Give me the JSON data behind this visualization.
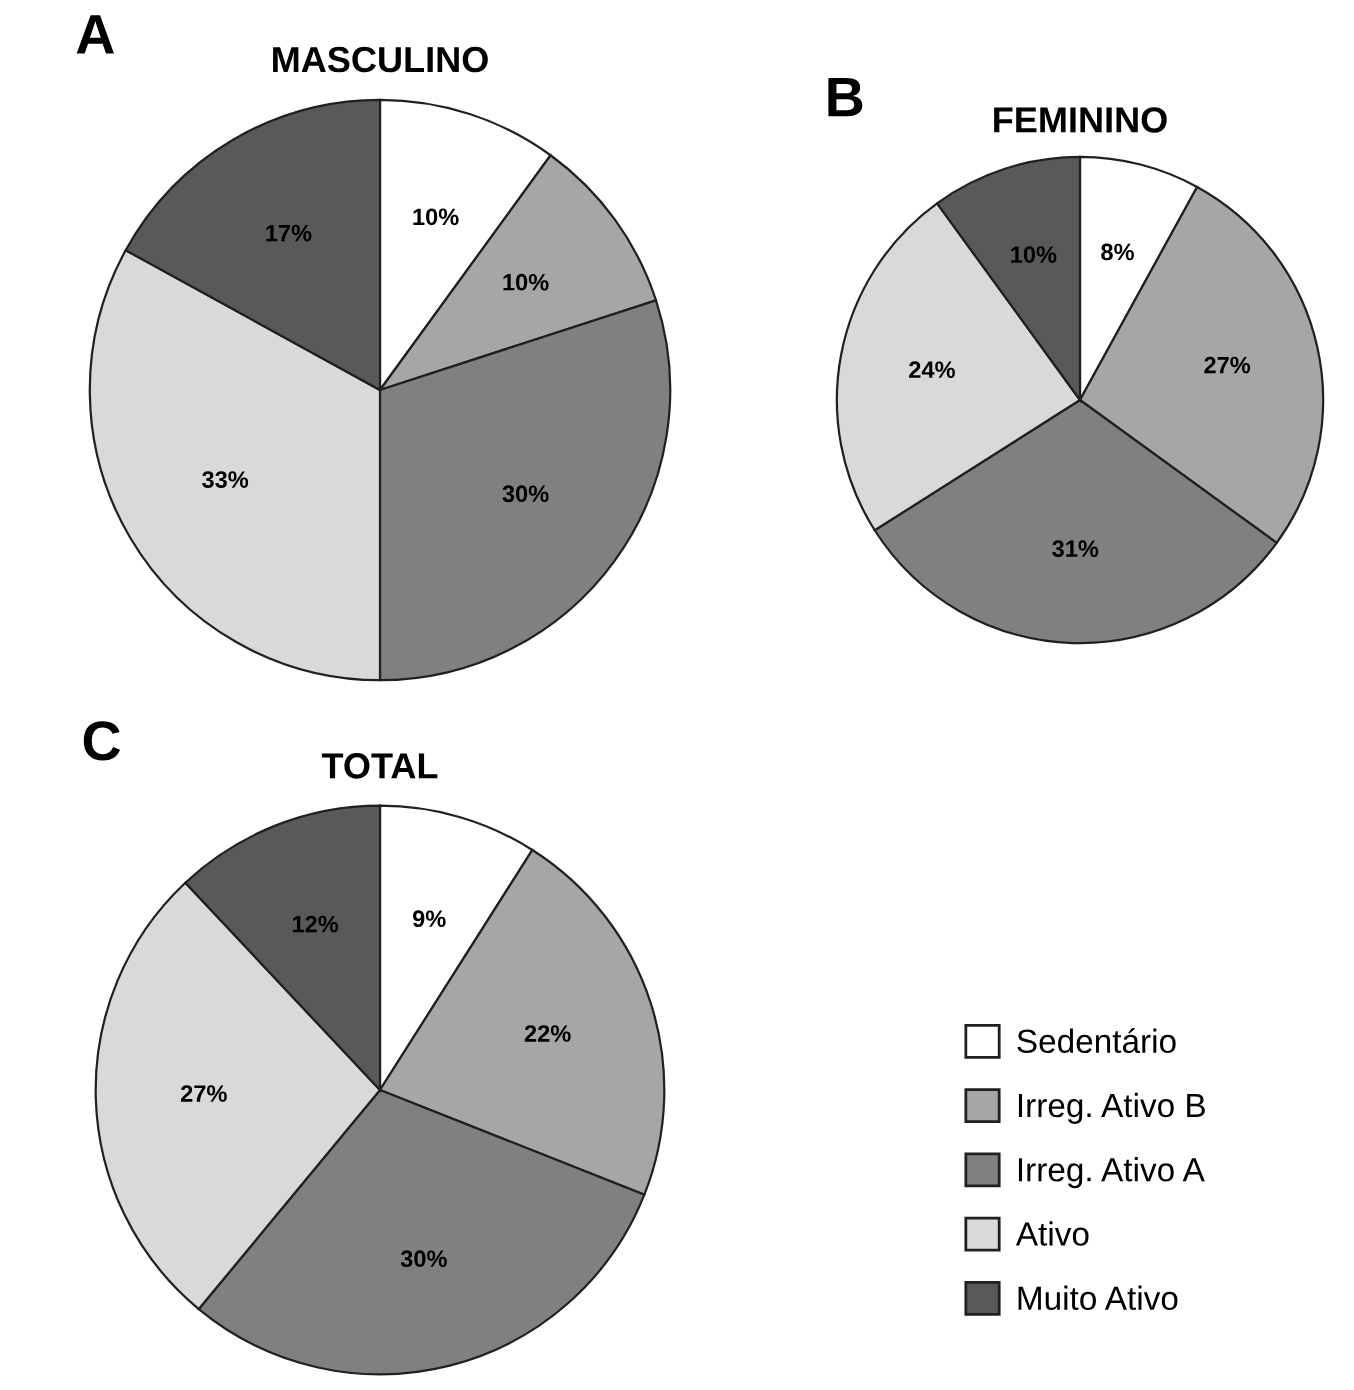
{
  "chart_data": [
    {
      "type": "pie",
      "title": "MASCULINO",
      "annotations": [
        "A"
      ],
      "values": [
        10,
        10,
        30,
        33,
        17
      ],
      "value_labels": [
        "10%",
        "10%",
        "30%",
        "33%",
        "17%"
      ],
      "colors": [
        "#ffffff",
        "#a6a6a6",
        "#808080",
        "#d9d9d9",
        "#595959"
      ]
    },
    {
      "type": "pie",
      "title": "FEMININO",
      "annotations": [
        "B"
      ],
      "values": [
        8,
        27,
        31,
        24,
        10
      ],
      "value_labels": [
        "8%",
        "27%",
        "31%",
        "24%",
        "10%"
      ],
      "colors": [
        "#ffffff",
        "#a6a6a6",
        "#808080",
        "#d9d9d9",
        "#595959"
      ]
    },
    {
      "type": "pie",
      "title": "TOTAL",
      "annotations": [
        "C"
      ],
      "categories": [
        "Sedentário",
        "Irreg. Ativo B",
        "Irreg. Ativo A",
        "Ativo",
        "Muito Ativo"
      ],
      "values": [
        9,
        22,
        30,
        27,
        12
      ],
      "value_labels": [
        "9%",
        "22%",
        "30%",
        "27%",
        "12%"
      ],
      "colors": [
        "#ffffff",
        "#a6a6a6",
        "#808080",
        "#d9d9d9",
        "#595959"
      ],
      "legend": "right"
    }
  ]
}
